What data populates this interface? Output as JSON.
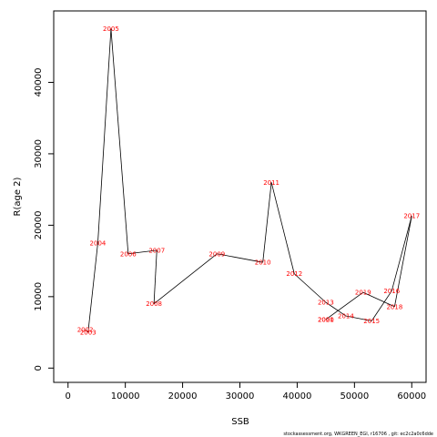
{
  "chart_data": {
    "type": "line",
    "xlabel": "SSB",
    "ylabel": "R(age 2)",
    "xlim": [
      -2500,
      62500
    ],
    "ylim": [
      -2000,
      50000
    ],
    "x_ticks": [
      0,
      10000,
      20000,
      30000,
      40000,
      50000,
      60000
    ],
    "y_ticks": [
      0,
      10000,
      20000,
      30000,
      40000
    ],
    "points": [
      {
        "year": "2001",
        "x": 45000,
        "y": 6800
      },
      {
        "year": "2002",
        "x": 3000,
        "y": 5400
      },
      {
        "year": "2003",
        "x": 3500,
        "y": 5000
      },
      {
        "year": "2004",
        "x": 5200,
        "y": 17500
      },
      {
        "year": "2005",
        "x": 7500,
        "y": 47500
      },
      {
        "year": "2006",
        "x": 10500,
        "y": 16000
      },
      {
        "year": "2007",
        "x": 15500,
        "y": 16500
      },
      {
        "year": "2008",
        "x": 15000,
        "y": 9000
      },
      {
        "year": "2009",
        "x": 26000,
        "y": 16000
      },
      {
        "year": "2010",
        "x": 34000,
        "y": 14800
      },
      {
        "year": "2011",
        "x": 35500,
        "y": 26000
      },
      {
        "year": "2012",
        "x": 39500,
        "y": 13200
      },
      {
        "year": "2013",
        "x": 45000,
        "y": 9200
      },
      {
        "year": "2014",
        "x": 48500,
        "y": 7300
      },
      {
        "year": "2015",
        "x": 53000,
        "y": 6600
      },
      {
        "year": "2016",
        "x": 56500,
        "y": 10800
      },
      {
        "year": "2017",
        "x": 60000,
        "y": 21300
      },
      {
        "year": "2018",
        "x": 57000,
        "y": 8600
      },
      {
        "year": "2019",
        "x": 51500,
        "y": 10600
      },
      {
        "year": "2020",
        "x": 45000,
        "y": 6800
      }
    ],
    "path_order": [
      "2002",
      "2003",
      "2004",
      "2005",
      "2006",
      "2007",
      "2008",
      "2009",
      "2010",
      "2011",
      "2012",
      "2013",
      "2014",
      "2015",
      "2016",
      "2017",
      "2018",
      "2019",
      "2020",
      "2001"
    ],
    "line_color": "#000000",
    "label_color": "#ff0000",
    "grid": false
  },
  "footer": "stockassessment.org, WKGREEN_EGI, r16706 , git: ec2c2a0c6dde"
}
